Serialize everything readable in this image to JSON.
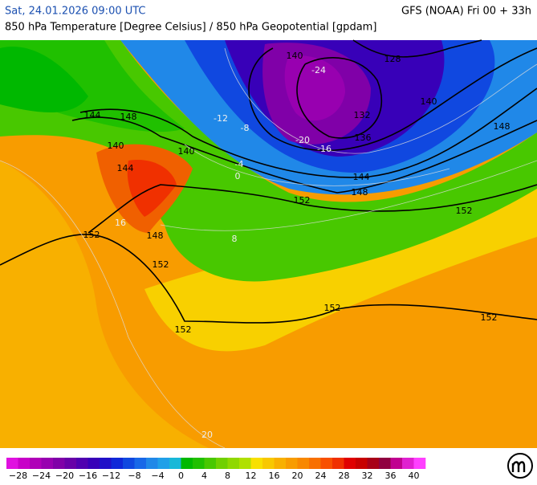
{
  "header": {
    "valid_time": "Sat, 24.01.2026 09:00 UTC",
    "model": "GFS (NOAA) Fri 00 + 33h",
    "subtitle": "850 hPa Temperature [Degree Celsius] / 850 hPa Geopotential [gpdam]"
  },
  "legend": {
    "lim": [
      -30,
      42
    ],
    "colors": [
      "#e010e0",
      "#c800c8",
      "#b000b8",
      "#9800b0",
      "#8000a8",
      "#6800a8",
      "#5000b0",
      "#3800b8",
      "#2010c8",
      "#1028d8",
      "#1048e0",
      "#1868e8",
      "#2088e8",
      "#20a0e8",
      "#18b8d8",
      "#00b800",
      "#20c000",
      "#48c800",
      "#70d000",
      "#90d800",
      "#b0e000",
      "#f8e000",
      "#f8c800",
      "#f8b000",
      "#f89c00",
      "#f88800",
      "#f87000",
      "#f85000",
      "#f03000",
      "#e00000",
      "#c80000",
      "#a80018",
      "#900040",
      "#c00090",
      "#e020d0",
      "#ff40ff"
    ],
    "ticks": [
      {
        "value": -28,
        "label": "−28"
      },
      {
        "value": -24,
        "label": "−24"
      },
      {
        "value": -20,
        "label": "−20"
      },
      {
        "value": -16,
        "label": "−16"
      },
      {
        "value": -12,
        "label": "−12"
      },
      {
        "value": -8,
        "label": "−8"
      },
      {
        "value": -4,
        "label": "−4"
      },
      0,
      4,
      8,
      12,
      16,
      20,
      24,
      28,
      32,
      36,
      40
    ]
  },
  "geopotential_labels": [
    152,
    152,
    152,
    152,
    152,
    152,
    152,
    148,
    148,
    148,
    148,
    144,
    144,
    144,
    140,
    140,
    140,
    140,
    136,
    132,
    128
  ],
  "temperature_labels": [
    -24,
    -20,
    -16,
    -12,
    -8,
    -4,
    0,
    8,
    16,
    20
  ]
}
